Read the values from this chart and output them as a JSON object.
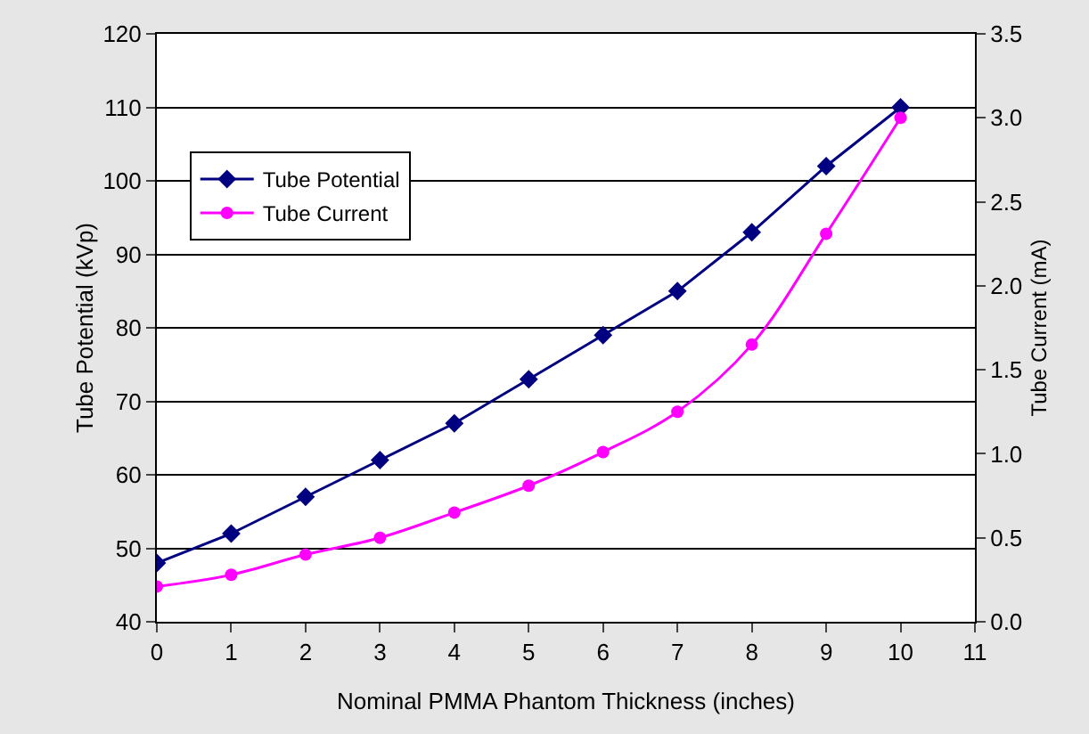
{
  "chart_data": {
    "type": "line",
    "xlabel": "Nominal PMMA Phantom Thickness (inches)",
    "ylabel": "Tube Potential (kVp)",
    "y2label": "Tube Current (mA)",
    "x": [
      0,
      1,
      2,
      3,
      4,
      5,
      6,
      7,
      8,
      9,
      10
    ],
    "xlim": [
      0,
      11
    ],
    "xticks": [
      0,
      1,
      2,
      3,
      4,
      5,
      6,
      7,
      8,
      9,
      10,
      11
    ],
    "ylim": [
      40,
      120
    ],
    "yticks": [
      40,
      50,
      60,
      70,
      80,
      90,
      100,
      110,
      120
    ],
    "y2lim": [
      0,
      3.5
    ],
    "y2ticks": [
      {
        "value": 0,
        "label": "0.0"
      },
      {
        "value": 0.5,
        "label": "0.5"
      },
      {
        "value": 1,
        "label": "1.0"
      },
      {
        "value": 1.5,
        "label": "1.5"
      },
      {
        "value": 2,
        "label": "2.0"
      },
      {
        "value": 2.5,
        "label": "2.5"
      },
      {
        "value": 3,
        "label": "3.0"
      },
      {
        "value": 3.5,
        "label": "3.5"
      }
    ],
    "grid": "y",
    "legend": "top left",
    "line_style": "solid",
    "series": [
      {
        "name": "Tube Potential",
        "color": "#000080",
        "marker": "diamond",
        "values": [
          48,
          52,
          57,
          62,
          67,
          73,
          79,
          85,
          93,
          102,
          110
        ]
      },
      {
        "name": "Tube Current",
        "color": "#ff00ff",
        "marker": "circle",
        "axis": "y2",
        "values": [
          0.21,
          0.28,
          0.4,
          0.5,
          0.65,
          0.81,
          1.01,
          1.25,
          1.65,
          2.31,
          3.0
        ]
      }
    ]
  }
}
